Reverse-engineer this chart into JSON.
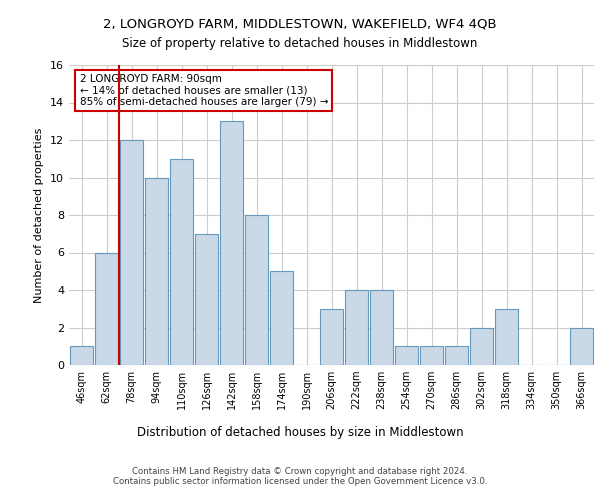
{
  "title1": "2, LONGROYD FARM, MIDDLESTOWN, WAKEFIELD, WF4 4QB",
  "title2": "Size of property relative to detached houses in Middlestown",
  "xlabel": "Distribution of detached houses by size in Middlestown",
  "ylabel": "Number of detached properties",
  "categories": [
    "46sqm",
    "62sqm",
    "78sqm",
    "94sqm",
    "110sqm",
    "126sqm",
    "142sqm",
    "158sqm",
    "174sqm",
    "190sqm",
    "206sqm",
    "222sqm",
    "238sqm",
    "254sqm",
    "270sqm",
    "286sqm",
    "302sqm",
    "318sqm",
    "334sqm",
    "350sqm",
    "366sqm"
  ],
  "values": [
    1,
    6,
    12,
    10,
    11,
    7,
    13,
    8,
    5,
    0,
    3,
    4,
    4,
    1,
    1,
    1,
    2,
    3,
    0,
    0,
    2
  ],
  "bar_color": "#c9d9e8",
  "bar_edge_color": "#6699bb",
  "ylim": [
    0,
    16
  ],
  "yticks": [
    0,
    2,
    4,
    6,
    8,
    10,
    12,
    14,
    16
  ],
  "annotation_text": "2 LONGROYD FARM: 90sqm\n← 14% of detached houses are smaller (13)\n85% of semi-detached houses are larger (79) →",
  "annotation_box_color": "#ffffff",
  "annotation_box_edge": "#cc0000",
  "footer1": "Contains HM Land Registry data © Crown copyright and database right 2024.",
  "footer2": "Contains public sector information licensed under the Open Government Licence v3.0.",
  "background_color": "#ffffff",
  "grid_color": "#cccccc",
  "red_line_x": 1.5
}
